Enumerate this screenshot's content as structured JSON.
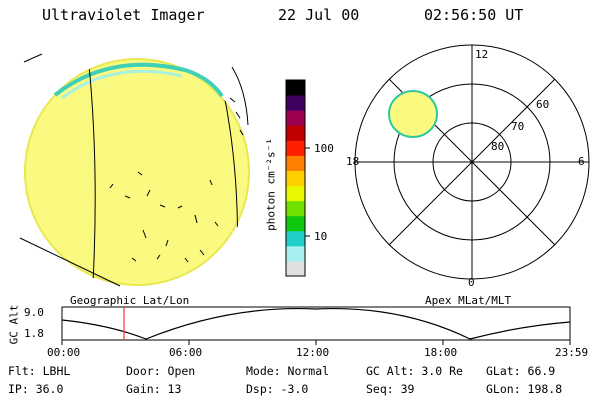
{
  "header": {
    "instrument": "Ultraviolet Imager",
    "date": "22 Jul 00",
    "time": "02:56:50 UT"
  },
  "colorbar": {
    "unit_label": "photon cm⁻²s⁻¹",
    "ticks": [
      "100",
      "10"
    ],
    "colors": [
      "#e0e0e0",
      "#a8f0f0",
      "#20d0c8",
      "#10c810",
      "#70e000",
      "#e8f800",
      "#ffd000",
      "#ff8000",
      "#ff2000",
      "#c00000",
      "#a00050",
      "#400060",
      "#000000"
    ]
  },
  "geo_panel": {
    "label": "Geographic Lat/Lon",
    "fill_color": "#fafa80"
  },
  "polar_panel": {
    "label": "Apex MLat/MLT",
    "mlt_labels": {
      "top": "12",
      "bottom": "0",
      "left": "18",
      "right": "6"
    },
    "mlat_labels": [
      "60",
      "70",
      "80"
    ]
  },
  "orbit_plot": {
    "ylabel": "GC Alt",
    "y_ticks": [
      "9.0",
      "1.8"
    ],
    "x_ticks": [
      "00:00",
      "06:00",
      "12:00",
      "18:00",
      "23:59"
    ],
    "marker_color": "#ff3030"
  },
  "info": {
    "flt": "Flt: LBHL",
    "ip": "IP: 36.0",
    "door": "Door: Open",
    "gain": "Gain: 13",
    "mode": "Mode: Normal",
    "dsp": "Dsp:   -3.0",
    "gcalt": "GC Alt: 3.0 Re",
    "seq": "Seq: 39",
    "glat": "GLat:  66.9",
    "glon": "GLon: 198.8"
  }
}
